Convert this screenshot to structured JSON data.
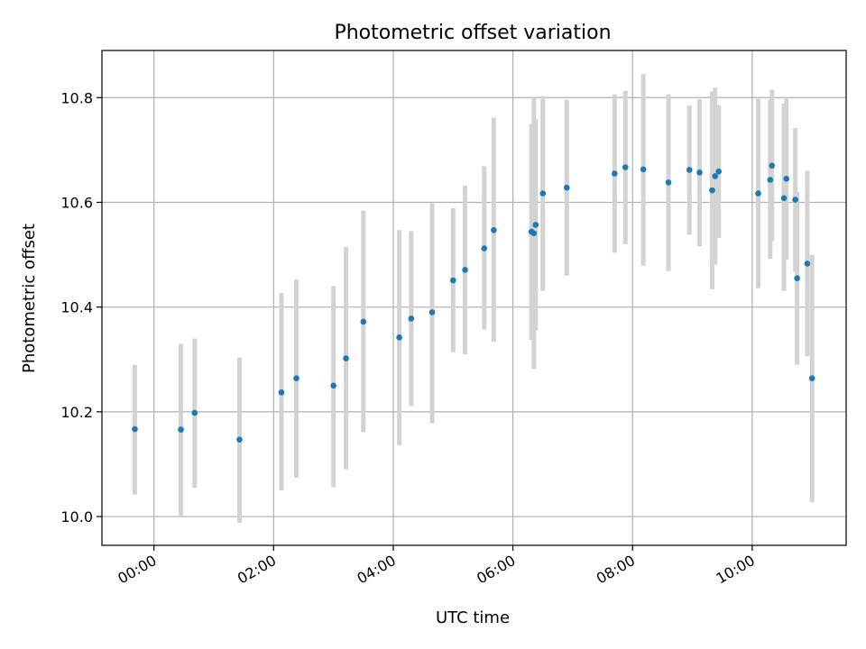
{
  "chart_data": {
    "type": "scatter",
    "title": "Photometric offset variation",
    "xlabel": "UTC time",
    "ylabel": "Photometric offset",
    "xlim_hours": [
      -0.87,
      11.57
    ],
    "ylim": [
      9.945,
      10.89
    ],
    "x_ticks": [
      {
        "hour": 0,
        "label": "00:00"
      },
      {
        "hour": 2,
        "label": "02:00"
      },
      {
        "hour": 4,
        "label": "04:00"
      },
      {
        "hour": 6,
        "label": "06:00"
      },
      {
        "hour": 8,
        "label": "08:00"
      },
      {
        "hour": 10,
        "label": "10:00"
      }
    ],
    "y_ticks": [
      {
        "value": 10.0,
        "label": "10.0"
      },
      {
        "value": 10.2,
        "label": "10.2"
      },
      {
        "value": 10.4,
        "label": "10.4"
      },
      {
        "value": 10.6,
        "label": "10.6"
      },
      {
        "value": 10.8,
        "label": "10.8"
      }
    ],
    "grid": true,
    "point_color": "#1f77b4",
    "errorbar_color": "#d3d3d3",
    "points": [
      {
        "x": -0.32,
        "y": 10.167,
        "ylow": 10.042,
        "yhigh": 10.29
      },
      {
        "x": 0.45,
        "y": 10.166,
        "ylow": 10.0,
        "yhigh": 10.33
      },
      {
        "x": 0.68,
        "y": 10.198,
        "ylow": 10.055,
        "yhigh": 10.34
      },
      {
        "x": 1.43,
        "y": 10.147,
        "ylow": 9.988,
        "yhigh": 10.304
      },
      {
        "x": 2.13,
        "y": 10.237,
        "ylow": 10.05,
        "yhigh": 10.427
      },
      {
        "x": 2.38,
        "y": 10.264,
        "ylow": 10.074,
        "yhigh": 10.453
      },
      {
        "x": 3.0,
        "y": 10.25,
        "ylow": 10.056,
        "yhigh": 10.44
      },
      {
        "x": 3.21,
        "y": 10.302,
        "ylow": 10.09,
        "yhigh": 10.515
      },
      {
        "x": 3.5,
        "y": 10.372,
        "ylow": 10.161,
        "yhigh": 10.584
      },
      {
        "x": 4.1,
        "y": 10.342,
        "ylow": 10.136,
        "yhigh": 10.547
      },
      {
        "x": 4.3,
        "y": 10.378,
        "ylow": 10.211,
        "yhigh": 10.545
      },
      {
        "x": 4.65,
        "y": 10.39,
        "ylow": 10.178,
        "yhigh": 10.598
      },
      {
        "x": 5.0,
        "y": 10.451,
        "ylow": 10.314,
        "yhigh": 10.589
      },
      {
        "x": 5.2,
        "y": 10.471,
        "ylow": 10.31,
        "yhigh": 10.632
      },
      {
        "x": 5.52,
        "y": 10.512,
        "ylow": 10.357,
        "yhigh": 10.669
      },
      {
        "x": 5.68,
        "y": 10.547,
        "ylow": 10.334,
        "yhigh": 10.762
      },
      {
        "x": 6.31,
        "y": 10.544,
        "ylow": 10.337,
        "yhigh": 10.75
      },
      {
        "x": 6.35,
        "y": 10.541,
        "ylow": 10.282,
        "yhigh": 10.8
      },
      {
        "x": 6.38,
        "y": 10.557,
        "ylow": 10.355,
        "yhigh": 10.759
      },
      {
        "x": 6.5,
        "y": 10.617,
        "ylow": 10.431,
        "yhigh": 10.803
      },
      {
        "x": 6.9,
        "y": 10.628,
        "ylow": 10.46,
        "yhigh": 10.796
      },
      {
        "x": 7.7,
        "y": 10.655,
        "ylow": 10.504,
        "yhigh": 10.806
      },
      {
        "x": 7.88,
        "y": 10.667,
        "ylow": 10.52,
        "yhigh": 10.813
      },
      {
        "x": 8.18,
        "y": 10.663,
        "ylow": 10.479,
        "yhigh": 10.845
      },
      {
        "x": 8.6,
        "y": 10.638,
        "ylow": 10.469,
        "yhigh": 10.806
      },
      {
        "x": 8.95,
        "y": 10.662,
        "ylow": 10.538,
        "yhigh": 10.785
      },
      {
        "x": 9.12,
        "y": 10.657,
        "ylow": 10.516,
        "yhigh": 10.797
      },
      {
        "x": 9.33,
        "y": 10.623,
        "ylow": 10.434,
        "yhigh": 10.812
      },
      {
        "x": 9.38,
        "y": 10.65,
        "ylow": 10.481,
        "yhigh": 10.819
      },
      {
        "x": 9.44,
        "y": 10.659,
        "ylow": 10.532,
        "yhigh": 10.786
      },
      {
        "x": 10.1,
        "y": 10.617,
        "ylow": 10.436,
        "yhigh": 10.798
      },
      {
        "x": 10.3,
        "y": 10.643,
        "ylow": 10.492,
        "yhigh": 10.796
      },
      {
        "x": 10.33,
        "y": 10.67,
        "ylow": 10.526,
        "yhigh": 10.815
      },
      {
        "x": 10.53,
        "y": 10.608,
        "ylow": 10.431,
        "yhigh": 10.789
      },
      {
        "x": 10.57,
        "y": 10.645,
        "ylow": 10.49,
        "yhigh": 10.8
      },
      {
        "x": 10.72,
        "y": 10.605,
        "ylow": 10.468,
        "yhigh": 10.742
      },
      {
        "x": 10.75,
        "y": 10.455,
        "ylow": 10.29,
        "yhigh": 10.62
      },
      {
        "x": 10.92,
        "y": 10.483,
        "ylow": 10.306,
        "yhigh": 10.66
      },
      {
        "x": 11.0,
        "y": 10.264,
        "ylow": 10.027,
        "yhigh": 10.5
      }
    ]
  }
}
